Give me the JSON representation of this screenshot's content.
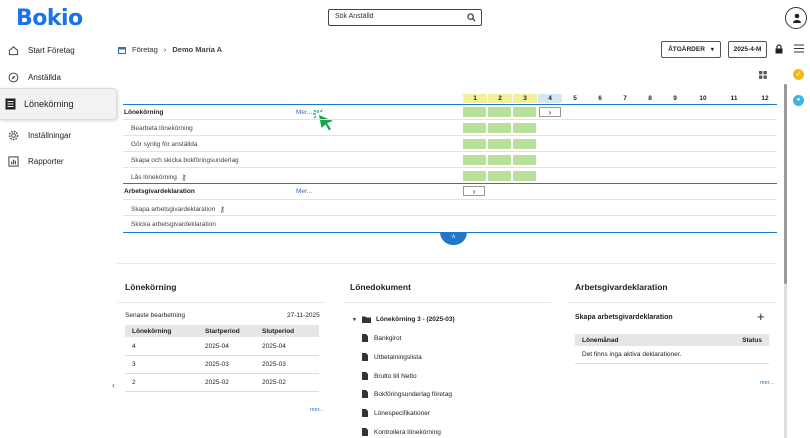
{
  "app": {
    "logo": "Bokio"
  },
  "search": {
    "placeholder": "Sök Anställd"
  },
  "sidebar": {
    "items": [
      {
        "label": "Start Företag",
        "icon": "home-icon"
      },
      {
        "label": "Anställda",
        "icon": "compass-icon"
      },
      {
        "label": "Lönekörning",
        "icon": "document-icon",
        "active": true
      },
      {
        "label": "Inställningar",
        "icon": "gear-icon"
      },
      {
        "label": "Rapporter",
        "icon": "chart-icon"
      }
    ]
  },
  "breadcrumb": {
    "company": "Företag",
    "current": "Demo Maria A"
  },
  "toolbar": {
    "actions_label": "ÅTGÄRDER",
    "period_label": "2025-4-M"
  },
  "timeline": {
    "months": [
      "1",
      "2",
      "3",
      "4",
      "5",
      "6",
      "7",
      "8",
      "9",
      "10",
      "11",
      "12"
    ],
    "section1": {
      "title": "Lönekörning",
      "more": "Mer...",
      "rows": [
        "Bearbeta lönekörning",
        "Gör synlig för anställda",
        "Skapa och skicka bokföringsunderlag",
        "Lås lönekörning"
      ]
    },
    "section2": {
      "title": "Arbetsgivardeklaration",
      "more": "Mer...",
      "rows": [
        "Skapa arbetsgivardeklaration",
        "Skicka arbetsgivardeklaration"
      ]
    }
  },
  "panel_payroll": {
    "title": "Lönekörning",
    "last_label": "Senaste bearbetning",
    "last_date": "27-11-2025",
    "headers": [
      "Lönekörning",
      "Startperiod",
      "Slutperiod"
    ],
    "rows": [
      [
        "4",
        "2025-04",
        "2025-04"
      ],
      [
        "3",
        "2025-03",
        "2025-03"
      ],
      [
        "2",
        "2025-02",
        "2025-02"
      ]
    ],
    "more": "mer..."
  },
  "panel_docs": {
    "title": "Lönedokument",
    "folder": "Lönekörning 3 - (2025-03)",
    "items": [
      "Bankgirot",
      "Utbetalningslista",
      "Brutto till Netto",
      "Bokföringsunderlag företag",
      "Lönespecifikationer",
      "Kontrollera lönekörning"
    ]
  },
  "panel_agd": {
    "title": "Arbetsgivardeklaration",
    "create_label": "Skapa arbetsgivardeklaration",
    "headers": [
      "Lönemånad",
      "Status"
    ],
    "empty": "Det finns inga aktiva deklarationer.",
    "more": "mer..."
  },
  "colors": {
    "brand": "#1a73e8",
    "green": "#b8e09a",
    "yellow": "#f3f09a",
    "current_month": "#d4e7f5",
    "accent": "#1f78c8"
  }
}
